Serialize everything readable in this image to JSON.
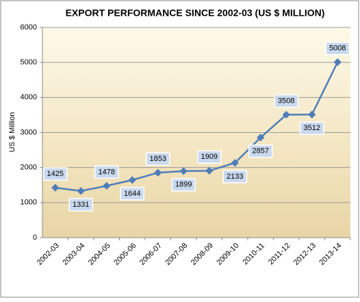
{
  "chart_data": {
    "type": "line",
    "title": "EXPORT  PERFORMANCE SINCE 2002-03 (US $ MILLION)",
    "y_label": "US $ Million",
    "categories": [
      "2002-03",
      "2003-04",
      "2004-05",
      "2005-06",
      "2006-07",
      "2007-08",
      "2008-09",
      "2009-10",
      "2010-11",
      "2011-12",
      "2012-13",
      "2013-14"
    ],
    "values": [
      1425,
      1331,
      1478,
      1644,
      1853,
      1899,
      1909,
      2133,
      2857,
      3508,
      3512,
      5008
    ],
    "color": "#4f7dba",
    "ylim": [
      0,
      6000
    ],
    "yticks": [
      0,
      1000,
      2000,
      3000,
      4000,
      5000,
      6000
    ],
    "grid": true
  }
}
